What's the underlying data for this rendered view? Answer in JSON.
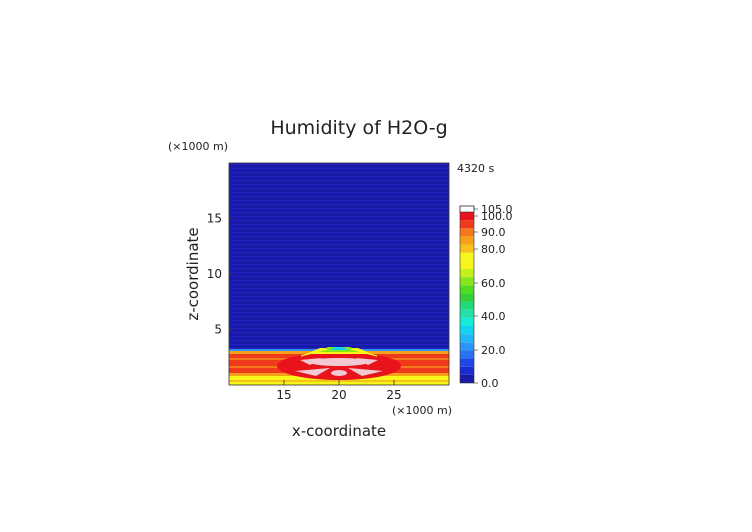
{
  "chart_data": {
    "type": "heatmap",
    "title": "Humidity of H2O-g",
    "time_label": "4320 s",
    "xlabel": "x-coordinate",
    "ylabel": "z-coordinate",
    "x_unit": "(×1000 m)",
    "y_unit": "(×1000 m)",
    "xlim": [
      10,
      30
    ],
    "ylim": [
      0,
      20
    ],
    "x_ticks": [
      "15",
      "20",
      "25"
    ],
    "y_ticks": [
      "5",
      "10",
      "15"
    ],
    "colorbar": {
      "labels": [
        "0.0",
        "20.0",
        "40.0",
        "60.0",
        "80.0",
        "90.0",
        "100.0",
        "105.0"
      ],
      "levels": [
        {
          "from": 0,
          "to": 5,
          "color": "#1a1aa8"
        },
        {
          "from": 5,
          "to": 10,
          "color": "#1c2bd0"
        },
        {
          "from": 10,
          "to": 15,
          "color": "#1f46e6"
        },
        {
          "from": 15,
          "to": 20,
          "color": "#2a72f0"
        },
        {
          "from": 20,
          "to": 25,
          "color": "#2d95f5"
        },
        {
          "from": 25,
          "to": 30,
          "color": "#23b6f5"
        },
        {
          "from": 30,
          "to": 35,
          "color": "#12d4ee"
        },
        {
          "from": 35,
          "to": 40,
          "color": "#14ecd8"
        },
        {
          "from": 40,
          "to": 45,
          "color": "#22e0a6"
        },
        {
          "from": 45,
          "to": 50,
          "color": "#22d87a"
        },
        {
          "from": 50,
          "to": 55,
          "color": "#35d038"
        },
        {
          "from": 55,
          "to": 60,
          "color": "#4fdb20"
        },
        {
          "from": 60,
          "to": 65,
          "color": "#86e81a"
        },
        {
          "from": 65,
          "to": 70,
          "color": "#c2f01a"
        },
        {
          "from": 70,
          "to": 80,
          "color": "#f6f61a"
        },
        {
          "from": 80,
          "to": 85,
          "color": "#f6c21a"
        },
        {
          "from": 85,
          "to": 90,
          "color": "#f5a11c"
        },
        {
          "from": 90,
          "to": 95,
          "color": "#f5781c"
        },
        {
          "from": 95,
          "to": 100,
          "color": "#f03a1c"
        },
        {
          "from": 100,
          "to": 105,
          "color": "#e8131b"
        }
      ],
      "over_color": "#ffffff"
    },
    "field_description_levels": {
      "upper_region_value": 2,
      "boundary_layer_top_km": 3
    }
  }
}
